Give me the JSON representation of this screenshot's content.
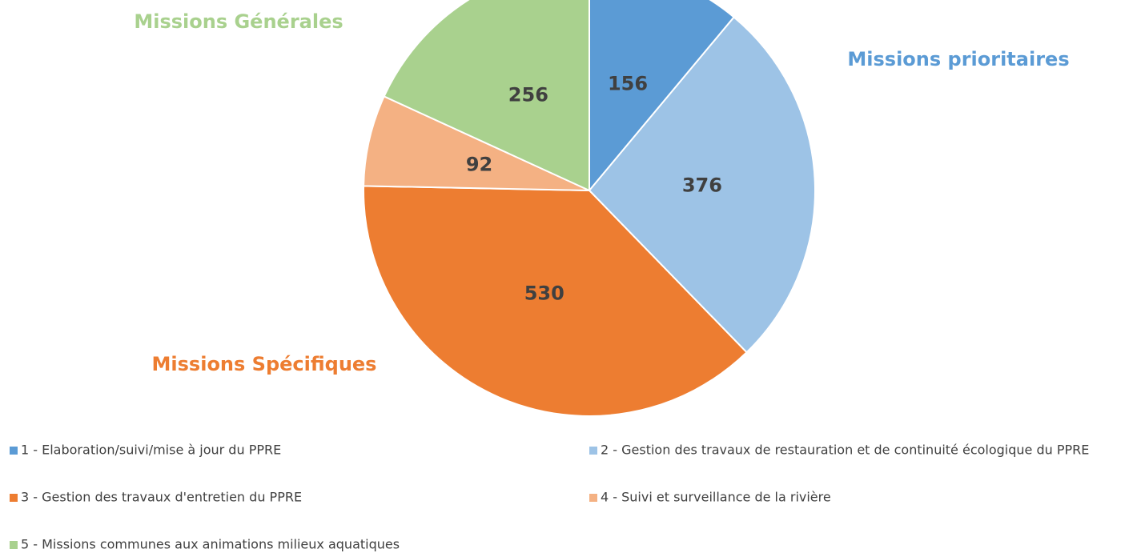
{
  "chart_data": {
    "type": "pie",
    "categories": [
      "1 - Elaboration/suivi/mise à jour du PPRE",
      "2 - Gestion des travaux de restauration et de continuité écologique du PPRE",
      "3 - Gestion des travaux d'entretien du PPRE",
      "4 - Suivi et surveillance de la rivière",
      "5 - Missions communes aux animations milieux aquatiques"
    ],
    "values": [
      156,
      376,
      530,
      92,
      256
    ],
    "colors": [
      "#5b9bd5",
      "#9dc3e6",
      "#ed7d31",
      "#f4b183",
      "#a9d18e"
    ],
    "annotations": [
      {
        "text": "Missions Générales",
        "color": "#a9d18e"
      },
      {
        "text": "Missions prioritaires",
        "color": "#5b9bd5"
      },
      {
        "text": "Missions Spécifiques",
        "color": "#ed7d31"
      }
    ],
    "legend": "bottom"
  }
}
